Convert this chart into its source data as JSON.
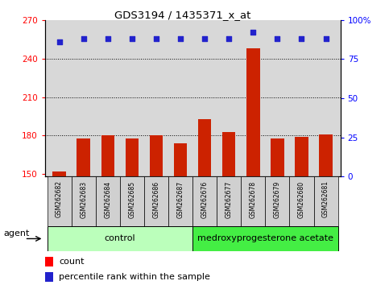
{
  "title": "GDS3194 / 1435371_x_at",
  "samples": [
    "GSM262682",
    "GSM262683",
    "GSM262684",
    "GSM262685",
    "GSM262686",
    "GSM262687",
    "GSM262676",
    "GSM262677",
    "GSM262678",
    "GSM262679",
    "GSM262680",
    "GSM262681"
  ],
  "counts": [
    152,
    178,
    180,
    178,
    180,
    174,
    193,
    183,
    248,
    178,
    179,
    181
  ],
  "percentiles": [
    86,
    88,
    88,
    88,
    88,
    88,
    88,
    88,
    92,
    88,
    88,
    88
  ],
  "ylim_left": [
    148,
    270
  ],
  "ylim_right": [
    0,
    100
  ],
  "yticks_left": [
    150,
    180,
    210,
    240,
    270
  ],
  "yticks_right": [
    0,
    25,
    50,
    75,
    100
  ],
  "ytick_labels_right": [
    "0",
    "25",
    "50",
    "75",
    "100%"
  ],
  "bar_color": "#cc2200",
  "dot_color": "#2222cc",
  "dot_size": 16,
  "bar_width": 0.55,
  "ctrl_color": "#bbffbb",
  "medro_color": "#44ee44",
  "ctrl_label": "control",
  "medro_label": "medroxyprogesterone acetate",
  "agent_label": "agent",
  "legend_count": "count",
  "legend_percentile": "percentile rank within the sample",
  "plot_bg": "#d8d8d8",
  "xtick_bg": "#d8d8d8",
  "n_ctrl": 6,
  "n_medro": 6
}
